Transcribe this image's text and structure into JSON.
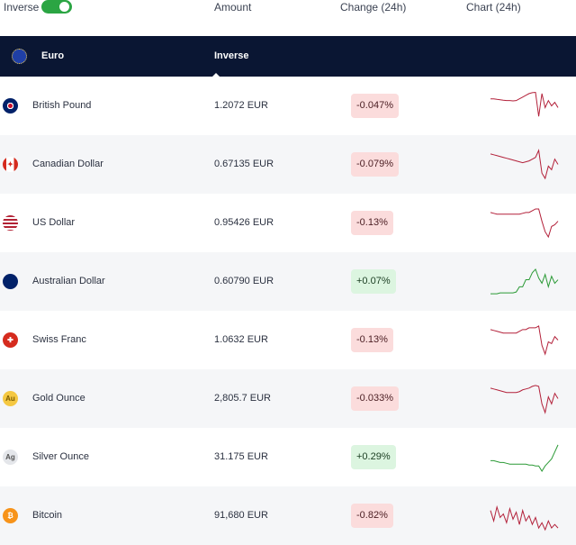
{
  "header": {
    "inverse_label": "Inverse",
    "inverse_on": true,
    "col_amount": "Amount",
    "col_change": "Change (24h)",
    "col_chart": "Chart (24h)"
  },
  "base": {
    "name": "Euro",
    "mode": "Inverse"
  },
  "colors": {
    "negative": "#b3213a",
    "positive": "#2b9a36",
    "header_bg": "#0a1633",
    "toggle": "#2ba543"
  },
  "rows": [
    {
      "name": "British Pound",
      "flag": "gb-flag",
      "amount": "1.2072 EUR",
      "change": "-0.047%",
      "dir": "neg",
      "spark": [
        5,
        5,
        5.3,
        5.5,
        5.8,
        6,
        6,
        6.2,
        6,
        5,
        4,
        3,
        2,
        1.5,
        1.3,
        15,
        2,
        10,
        6,
        9,
        7,
        10
      ]
    },
    {
      "name": "Canadian Dollar",
      "flag": "ca-flag",
      "amount": "0.67135 EUR",
      "change": "-0.079%",
      "dir": "neg",
      "spark": [
        3,
        3.5,
        4,
        4.5,
        5,
        5.5,
        6,
        6.5,
        7,
        7.5,
        8,
        7.5,
        7,
        6,
        5,
        1,
        14,
        17,
        10,
        12,
        6,
        9
      ]
    },
    {
      "name": "US Dollar",
      "flag": "us-flag",
      "amount": "0.95426 EUR",
      "change": "-0.13%",
      "dir": "neg",
      "spark": [
        3,
        3.5,
        4,
        4,
        4,
        4,
        4,
        4,
        4,
        4,
        3.5,
        3,
        3,
        2,
        1,
        1,
        8,
        14,
        17,
        11,
        10,
        8
      ]
    },
    {
      "name": "Australian Dollar",
      "flag": "au-flag",
      "amount": "0.60790 EUR",
      "change": "+0.07%",
      "dir": "pos",
      "spark": [
        16,
        16,
        16,
        15.5,
        15.5,
        15.5,
        15.5,
        15.5,
        15,
        12,
        12,
        8,
        8,
        4,
        2,
        7,
        10,
        5,
        12,
        6,
        10,
        8
      ]
    },
    {
      "name": "Swiss Franc",
      "flag": "ch-flag",
      "amount": "1.0632 EUR",
      "change": "-0.13%",
      "dir": "neg",
      "spark": [
        3,
        3.5,
        4,
        4.5,
        5,
        5,
        5,
        5,
        5,
        4,
        3,
        3,
        2,
        2,
        2,
        1,
        12,
        17,
        10,
        11,
        7,
        9
      ]
    },
    {
      "name": "Gold Ounce",
      "flag": "au-coin",
      "amount": "2,805.7 EUR",
      "change": "-0.033%",
      "dir": "neg",
      "spark": [
        3,
        3.5,
        4,
        4.5,
        5,
        5.5,
        5.5,
        5.5,
        5.5,
        5,
        4,
        3.5,
        3,
        2,
        1.5,
        2,
        12,
        17,
        8,
        12,
        6,
        9
      ]
    },
    {
      "name": "Silver Ounce",
      "flag": "ag-coin",
      "amount": "31.175 EUR",
      "change": "+0.29%",
      "dir": "pos",
      "spark": [
        11,
        11,
        11.5,
        12,
        12,
        12.5,
        13,
        13,
        13,
        13,
        13,
        13,
        13.5,
        13.5,
        14,
        14,
        17,
        14,
        12,
        10,
        6,
        2
      ]
    },
    {
      "name": "Bitcoin",
      "flag": "btc-coin",
      "amount": "91,680 EUR",
      "change": "-0.82%",
      "dir": "neg",
      "spark": [
        6,
        12,
        4,
        10,
        8,
        13,
        5,
        11,
        7,
        14,
        6,
        12,
        9,
        14,
        10,
        16,
        13,
        17,
        12,
        16,
        14,
        16
      ]
    }
  ]
}
